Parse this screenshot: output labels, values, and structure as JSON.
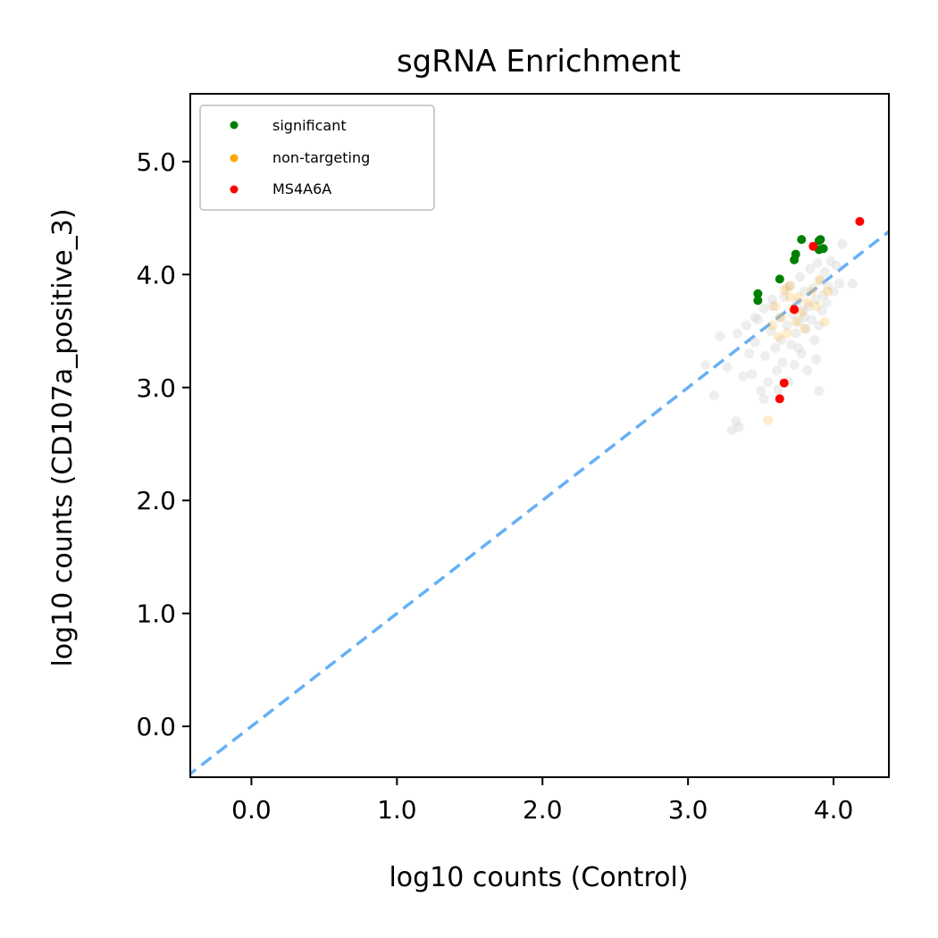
{
  "chart_data": {
    "type": "scatter",
    "title": "sgRNA Enrichment",
    "xlabel": "log10 counts (Control)",
    "ylabel": "log10 counts (CD107a_positive_3)",
    "xlim": [
      -0.42,
      4.38
    ],
    "ylim": [
      -0.45,
      5.6
    ],
    "xticks": [
      0.0,
      1.0,
      2.0,
      3.0,
      4.0
    ],
    "yticks": [
      0.0,
      1.0,
      2.0,
      3.0,
      4.0,
      5.0
    ],
    "xtick_labels": [
      "0.0",
      "1.0",
      "2.0",
      "3.0",
      "4.0"
    ],
    "ytick_labels": [
      "0.0",
      "1.0",
      "2.0",
      "3.0",
      "4.0",
      "5.0"
    ],
    "grid": false,
    "legend_position": "top-left",
    "reference_line": {
      "style": "dashed",
      "slope": 1,
      "intercept": 0,
      "color": "#66b0f5"
    },
    "series": [
      {
        "key": "other",
        "color": "#cfcfcf",
        "opacity": 0.35,
        "points": [
          [
            3.12,
            3.2
          ],
          [
            3.18,
            2.93
          ],
          [
            3.22,
            3.45
          ],
          [
            3.27,
            3.18
          ],
          [
            3.3,
            2.62
          ],
          [
            3.33,
            2.7
          ],
          [
            3.35,
            2.65
          ],
          [
            3.34,
            3.48
          ],
          [
            3.38,
            3.1
          ],
          [
            3.4,
            3.55
          ],
          [
            3.42,
            3.3
          ],
          [
            3.44,
            3.12
          ],
          [
            3.46,
            3.4
          ],
          [
            3.48,
            3.6
          ],
          [
            3.5,
            2.97
          ],
          [
            3.52,
            2.9
          ],
          [
            3.53,
            3.28
          ],
          [
            3.55,
            3.05
          ],
          [
            3.57,
            3.5
          ],
          [
            3.58,
            3.72
          ],
          [
            3.6,
            3.35
          ],
          [
            3.61,
            3.15
          ],
          [
            3.63,
            3.62
          ],
          [
            3.64,
            3.42
          ],
          [
            3.65,
            3.22
          ],
          [
            3.66,
            3.8
          ],
          [
            3.68,
            3.55
          ],
          [
            3.69,
            3.05
          ],
          [
            3.7,
            3.9
          ],
          [
            3.71,
            3.38
          ],
          [
            3.72,
            3.65
          ],
          [
            3.73,
            3.2
          ],
          [
            3.74,
            3.48
          ],
          [
            3.75,
            3.75
          ],
          [
            3.76,
            3.58
          ],
          [
            3.77,
            3.98
          ],
          [
            3.78,
            3.3
          ],
          [
            3.79,
            3.68
          ],
          [
            3.8,
            3.85
          ],
          [
            3.81,
            3.52
          ],
          [
            3.82,
            3.15
          ],
          [
            3.83,
            3.72
          ],
          [
            3.84,
            4.05
          ],
          [
            3.85,
            3.6
          ],
          [
            3.86,
            3.88
          ],
          [
            3.87,
            3.42
          ],
          [
            3.88,
            3.78
          ],
          [
            3.89,
            4.1
          ],
          [
            3.9,
            3.55
          ],
          [
            3.91,
            3.95
          ],
          [
            3.92,
            3.68
          ],
          [
            3.93,
            3.82
          ],
          [
            3.94,
            4.02
          ],
          [
            3.95,
            3.75
          ],
          [
            3.96,
            3.9
          ],
          [
            3.98,
            4.12
          ],
          [
            4.0,
            3.85
          ],
          [
            4.02,
            4.08
          ],
          [
            4.04,
            3.92
          ],
          [
            4.06,
            4.27
          ],
          [
            4.13,
            3.92
          ],
          [
            3.88,
            3.25
          ],
          [
            3.9,
            2.97
          ],
          [
            3.62,
            2.98
          ],
          [
            3.58,
            3.78
          ],
          [
            3.68,
            3.88
          ],
          [
            3.76,
            3.35
          ],
          [
            3.8,
            3.62
          ],
          [
            3.46,
            3.62
          ],
          [
            3.52,
            3.7
          ]
        ]
      },
      {
        "key": "non-targeting",
        "name": "non-targeting",
        "color": "#ffa500",
        "opacity": 0.2,
        "points": [
          [
            3.55,
            2.71
          ],
          [
            3.58,
            3.55
          ],
          [
            3.6,
            3.72
          ],
          [
            3.64,
            3.62
          ],
          [
            3.66,
            3.86
          ],
          [
            3.68,
            3.48
          ],
          [
            3.7,
            3.9
          ],
          [
            3.72,
            3.7
          ],
          [
            3.74,
            3.58
          ],
          [
            3.76,
            3.8
          ],
          [
            3.78,
            3.66
          ],
          [
            3.8,
            3.52
          ],
          [
            3.82,
            3.75
          ],
          [
            3.85,
            3.85
          ],
          [
            3.88,
            3.72
          ],
          [
            3.9,
            3.95
          ],
          [
            3.94,
            3.58
          ],
          [
            3.96,
            3.85
          ],
          [
            3.62,
            3.45
          ],
          [
            3.7,
            3.8
          ]
        ]
      },
      {
        "key": "significant",
        "name": "significant",
        "color": "#008000",
        "opacity": 1,
        "points": [
          [
            3.48,
            3.83
          ],
          [
            3.48,
            3.77
          ],
          [
            3.63,
            3.96
          ],
          [
            3.73,
            4.13
          ],
          [
            3.74,
            4.18
          ],
          [
            3.78,
            4.31
          ],
          [
            3.9,
            4.22
          ],
          [
            3.91,
            4.31
          ],
          [
            3.93,
            4.23
          ],
          [
            3.9,
            4.3
          ]
        ]
      },
      {
        "key": "MS4A6A",
        "name": "MS4A6A",
        "color": "#ff0000",
        "opacity": 1,
        "points": [
          [
            3.63,
            2.9
          ],
          [
            3.66,
            3.04
          ],
          [
            3.73,
            3.69
          ],
          [
            3.86,
            4.25
          ],
          [
            4.18,
            4.47
          ]
        ]
      }
    ]
  }
}
